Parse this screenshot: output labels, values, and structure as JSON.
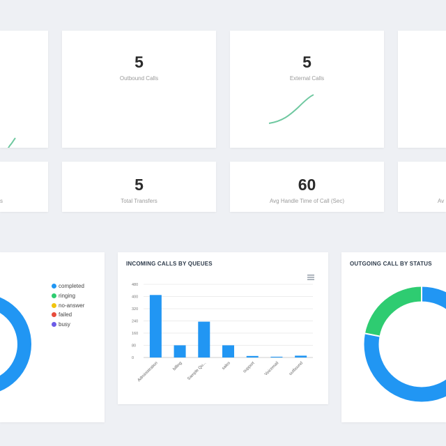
{
  "kpis_top": [
    {
      "value": "",
      "label": ""
    },
    {
      "value": "5",
      "label": "Outbound Calls"
    },
    {
      "value": "5",
      "label": "External Calls"
    },
    {
      "value": "",
      "label": ""
    }
  ],
  "kpis_bottom": [
    {
      "value": "",
      "label": "s"
    },
    {
      "value": "5",
      "label": "Total Transfers"
    },
    {
      "value": "60",
      "label": "Avg Handle Time of Call (Sec)"
    },
    {
      "value": "",
      "label": "Av"
    }
  ],
  "left_panel": {
    "legend": [
      {
        "label": "completed",
        "color": "#2196f3"
      },
      {
        "label": "ringing",
        "color": "#2ecc71"
      },
      {
        "label": "no-answer",
        "color": "#f1c40f"
      },
      {
        "label": "failed",
        "color": "#e74c3c"
      },
      {
        "label": "busy",
        "color": "#6c5ce7"
      }
    ]
  },
  "queues_panel": {
    "title": "INCOMING CALLS BY QUEUES",
    "menu_icon": "hamburger-menu-icon"
  },
  "outgoing_panel": {
    "title": "OUTGOING CALL BY STATUS"
  },
  "chart_data": [
    {
      "type": "bar",
      "title": "INCOMING CALLS BY QUEUES",
      "categories": [
        "Administration",
        "billing",
        "Sample Qu...",
        "sales",
        "support",
        "Voicemail",
        "outbound"
      ],
      "values": [
        410,
        80,
        235,
        80,
        10,
        5,
        12
      ],
      "yticks": [
        "480",
        "400",
        "320",
        "240",
        "160",
        "80",
        "0"
      ],
      "ylim": [
        0,
        480
      ],
      "grid": true,
      "color": "#2196f3"
    },
    {
      "type": "pie",
      "title": "OUTGOING CALL BY STATUS",
      "labels": [
        "completed",
        "ringing"
      ],
      "values": [
        78,
        22
      ],
      "colors": [
        "#2196f3",
        "#2ecc71"
      ]
    }
  ]
}
